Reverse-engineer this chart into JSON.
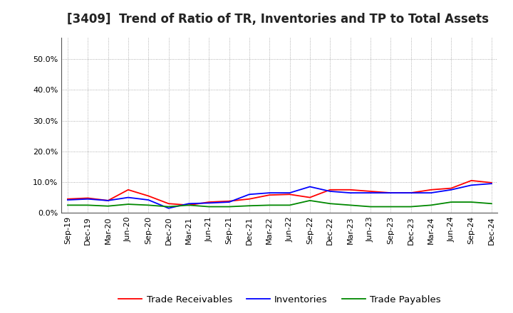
{
  "title": "[3409]  Trend of Ratio of TR, Inventories and TP to Total Assets",
  "x_labels": [
    "Sep-19",
    "Dec-19",
    "Mar-20",
    "Jun-20",
    "Sep-20",
    "Dec-20",
    "Mar-21",
    "Jun-21",
    "Sep-21",
    "Dec-21",
    "Mar-22",
    "Jun-22",
    "Sep-22",
    "Dec-22",
    "Mar-23",
    "Jun-23",
    "Sep-23",
    "Dec-23",
    "Mar-24",
    "Jun-24",
    "Sep-24",
    "Dec-24"
  ],
  "trade_receivables": [
    4.5,
    4.8,
    4.0,
    7.5,
    5.5,
    3.0,
    2.5,
    3.5,
    3.8,
    4.5,
    5.8,
    6.0,
    5.0,
    7.5,
    7.5,
    7.0,
    6.5,
    6.5,
    7.5,
    8.0,
    10.5,
    9.8
  ],
  "inventories": [
    4.2,
    4.5,
    4.0,
    5.0,
    4.2,
    1.5,
    3.0,
    3.2,
    3.5,
    6.0,
    6.5,
    6.5,
    8.5,
    7.0,
    6.5,
    6.5,
    6.5,
    6.5,
    6.5,
    7.5,
    9.0,
    9.5
  ],
  "trade_payables": [
    2.5,
    2.5,
    2.2,
    2.8,
    2.5,
    2.0,
    2.5,
    2.0,
    2.0,
    2.3,
    2.5,
    2.5,
    4.0,
    3.0,
    2.5,
    2.0,
    2.0,
    2.0,
    2.5,
    3.5,
    3.5,
    3.0
  ],
  "trade_receivables_color": "#ff0000",
  "inventories_color": "#0000ff",
  "trade_payables_color": "#008800",
  "ylim": [
    0,
    57
  ],
  "yticks": [
    0,
    10,
    20,
    30,
    40,
    50
  ],
  "ytick_labels": [
    "0.0%",
    "10.0%",
    "20.0%",
    "30.0%",
    "40.0%",
    "50.0%"
  ],
  "background_color": "#ffffff",
  "plot_bg_color": "#ffffff",
  "grid_color": "#999999",
  "legend_labels": [
    "Trade Receivables",
    "Inventories",
    "Trade Payables"
  ],
  "title_fontsize": 12,
  "tick_fontsize": 8,
  "legend_fontsize": 9.5
}
